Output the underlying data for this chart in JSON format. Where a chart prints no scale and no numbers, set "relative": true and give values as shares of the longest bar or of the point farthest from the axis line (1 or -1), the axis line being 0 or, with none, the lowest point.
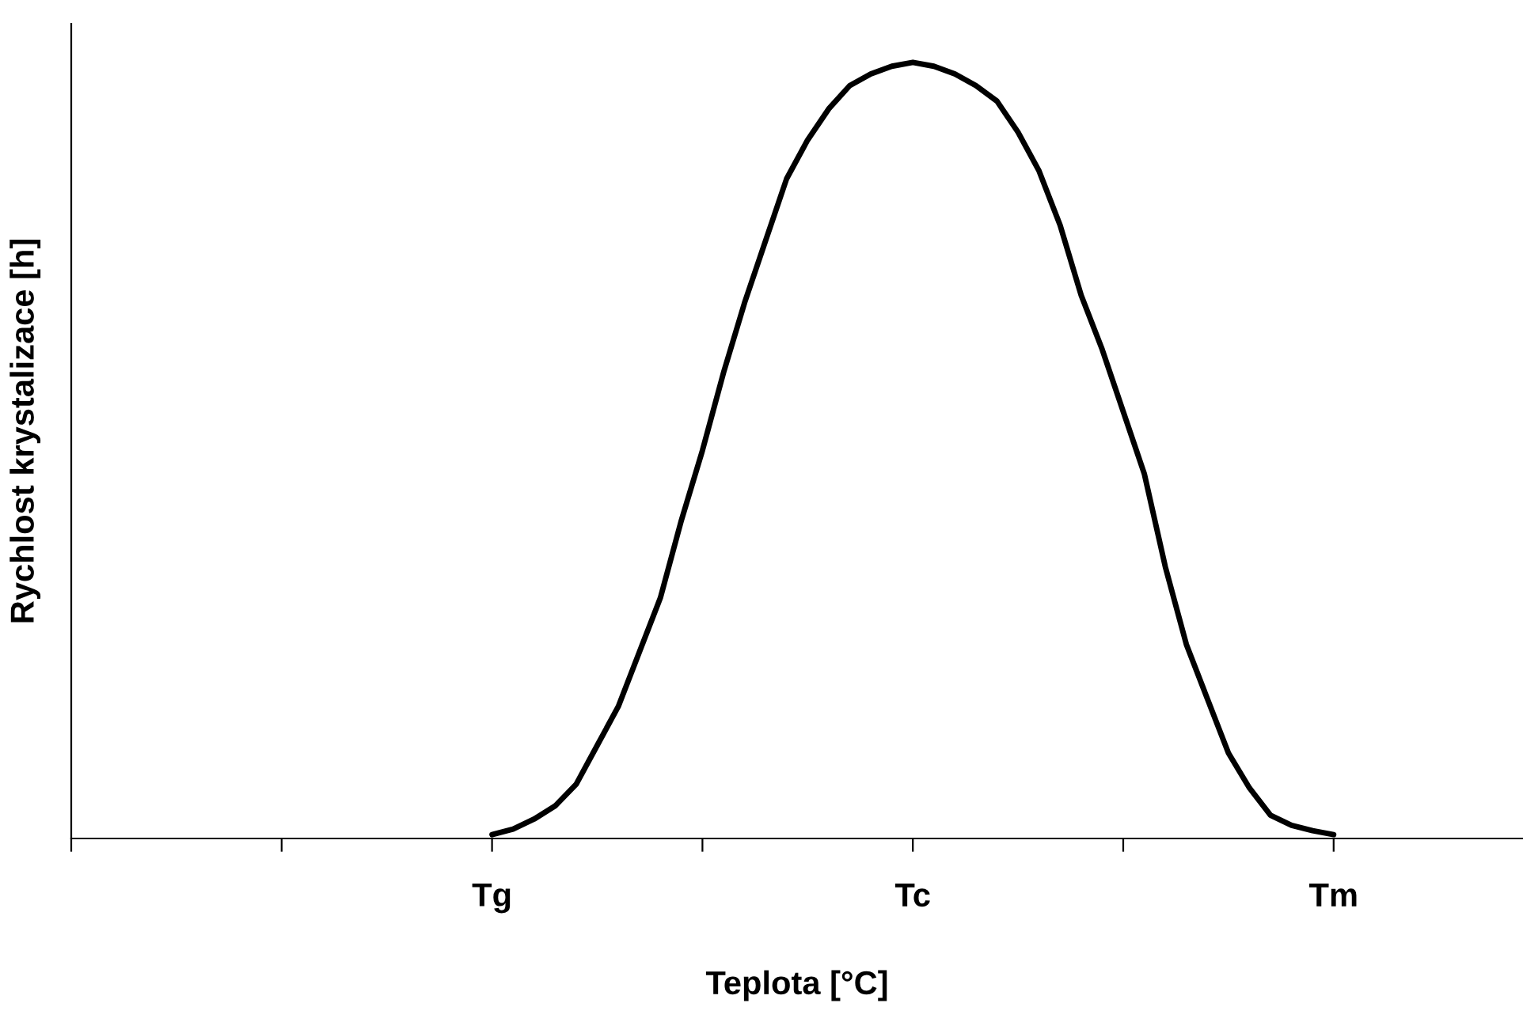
{
  "chart_data": {
    "type": "line",
    "relative": true,
    "xlabel": "Teplota [°C]",
    "ylabel": "Rychlost krystalizace [h]",
    "categories": [
      null,
      null,
      null,
      null,
      null,
      null,
      null,
      null,
      null,
      null,
      null,
      null,
      null,
      null,
      null,
      null,
      null,
      null,
      null,
      null,
      "Tg",
      null,
      null,
      null,
      null,
      null,
      null,
      null,
      null,
      null,
      null,
      null,
      null,
      null,
      null,
      null,
      null,
      null,
      null,
      null,
      "Tc",
      null,
      null,
      null,
      null,
      null,
      null,
      null,
      null,
      null,
      null,
      null,
      null,
      null,
      null,
      null,
      null,
      null,
      null,
      null,
      "Tm",
      null,
      null,
      null,
      null,
      null,
      null,
      null,
      null,
      null
    ],
    "grid": false,
    "legend": false,
    "marker": "none",
    "line_style": "solid",
    "series": [
      {
        "color": "#000000",
        "values": [
          null,
          null,
          null,
          null,
          null,
          null,
          null,
          null,
          null,
          null,
          null,
          null,
          null,
          null,
          null,
          null,
          null,
          null,
          null,
          null,
          0.005,
          0.012,
          0.025,
          0.042,
          0.07,
          0.12,
          0.17,
          0.24,
          0.31,
          0.41,
          0.5,
          0.6,
          0.69,
          0.77,
          0.85,
          0.9,
          0.94,
          0.97,
          0.985,
          0.995,
          1.0,
          0.995,
          0.985,
          0.97,
          0.95,
          0.91,
          0.86,
          0.79,
          0.7,
          0.63,
          0.55,
          0.47,
          0.35,
          0.25,
          0.18,
          0.11,
          0.065,
          0.03,
          0.017,
          0.01,
          0.005,
          null,
          null,
          null,
          null,
          null,
          null,
          null,
          null,
          null
        ]
      }
    ]
  }
}
